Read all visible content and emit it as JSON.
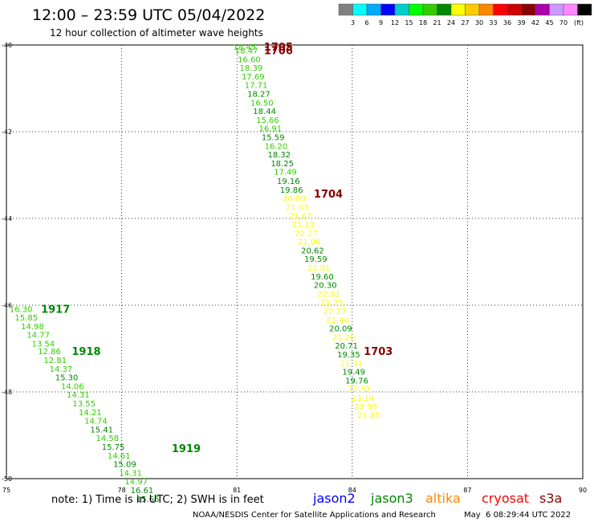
{
  "header": {
    "title": "12:00 – 23:59 UTC 05/04/2022",
    "subtitle": "12 hour collection of altimeter wave heights"
  },
  "colorbar": {
    "unit": "(ft)",
    "levels": [
      "",
      "3",
      "6",
      "9",
      "12",
      "15",
      "18",
      "21",
      "24",
      "27",
      "30",
      "33",
      "36",
      "39",
      "42",
      "45",
      "70"
    ],
    "colors": [
      "#808080",
      "#00ffff",
      "#00aaff",
      "#0000ff",
      "#00cccc",
      "#00ff00",
      "#33cc00",
      "#008800",
      "#ffff00",
      "#ffcc00",
      "#ff8800",
      "#ff0000",
      "#cc0000",
      "#880000",
      "#aa00aa",
      "#cc99ff",
      "#ff88ff",
      "#000000"
    ]
  },
  "footer": {
    "note": "note: 1) Time is in UTC; 2) SWH is in feet",
    "legend": [
      {
        "name": "jason2",
        "color": "#0000ff"
      },
      {
        "name": "jason3",
        "color": "#008800"
      },
      {
        "name": "altika",
        "color": "#ff8800"
      },
      {
        "name": "cryosat",
        "color": "#ff0000"
      },
      {
        "name": "s3a",
        "color": "#880000"
      }
    ],
    "credit": "NOAA/NESDIS Center for Satellite Applications and Research",
    "timestamp": "May  6 08:29:44 UTC 2022"
  },
  "chart_data": {
    "type": "scatter",
    "xlim": [
      75,
      90
    ],
    "ylim": [
      -50,
      -40
    ],
    "xticks": [
      "75",
      "78",
      "81",
      "84",
      "87",
      "90"
    ],
    "yticks": [
      "-40",
      "-42",
      "-44",
      "-46",
      "-48",
      "-50"
    ],
    "grid": true,
    "colors": {
      "dark": "#008800",
      "light": "#33cc00",
      "yellow": "#ffff00",
      "maroon": "#880000"
    },
    "passes": [
      {
        "label": "1705",
        "x": 81.7,
        "y": -40.04
      },
      {
        "label": "1706",
        "x": 81.7,
        "y": -40.12
      },
      {
        "label": "1704",
        "x": 83.0,
        "y": -43.43
      },
      {
        "label": "1703",
        "x": 84.3,
        "y": -47.06
      },
      {
        "label": "1917",
        "x": 75.9,
        "y": -46.08
      },
      {
        "label": "1918",
        "x": 76.7,
        "y": -47.06
      },
      {
        "label": "1919",
        "x": 79.3,
        "y": -49.3
      }
    ],
    "points": [
      {
        "x": 80.9,
        "y": -40.04,
        "v": "18.45",
        "c": "light"
      },
      {
        "x": 80.95,
        "y": -40.12,
        "v": "18.47",
        "c": "light"
      },
      {
        "x": 81.02,
        "y": -40.32,
        "v": "16.60",
        "c": "light"
      },
      {
        "x": 81.07,
        "y": -40.52,
        "v": "18.39",
        "c": "light"
      },
      {
        "x": 81.12,
        "y": -40.72,
        "v": "17.69",
        "c": "light"
      },
      {
        "x": 81.2,
        "y": -40.92,
        "v": "17.71",
        "c": "light"
      },
      {
        "x": 81.27,
        "y": -41.12,
        "v": "18.27",
        "c": "dark"
      },
      {
        "x": 81.35,
        "y": -41.32,
        "v": "16.50",
        "c": "light"
      },
      {
        "x": 81.42,
        "y": -41.52,
        "v": "18.44",
        "c": "dark"
      },
      {
        "x": 81.5,
        "y": -41.72,
        "v": "15.66",
        "c": "light"
      },
      {
        "x": 81.57,
        "y": -41.92,
        "v": "16.91",
        "c": "light"
      },
      {
        "x": 81.64,
        "y": -42.12,
        "v": "15.59",
        "c": "dark"
      },
      {
        "x": 81.72,
        "y": -42.32,
        "v": "16.20",
        "c": "light"
      },
      {
        "x": 81.8,
        "y": -42.52,
        "v": "18.32",
        "c": "dark"
      },
      {
        "x": 81.88,
        "y": -42.72,
        "v": "18.25",
        "c": "dark"
      },
      {
        "x": 81.96,
        "y": -42.92,
        "v": "17.49",
        "c": "light"
      },
      {
        "x": 82.04,
        "y": -43.13,
        "v": "19.16",
        "c": "dark"
      },
      {
        "x": 82.12,
        "y": -43.33,
        "v": "19.86",
        "c": "dark"
      },
      {
        "x": 82.19,
        "y": -43.53,
        "v": "20.80",
        "c": "yellow"
      },
      {
        "x": 82.27,
        "y": -43.73,
        "v": "21.03",
        "c": "yellow"
      },
      {
        "x": 82.35,
        "y": -43.93,
        "v": "21.67",
        "c": "yellow"
      },
      {
        "x": 82.43,
        "y": -44.13,
        "v": "21.13",
        "c": "yellow"
      },
      {
        "x": 82.5,
        "y": -44.33,
        "v": "22.27",
        "c": "yellow"
      },
      {
        "x": 82.58,
        "y": -44.53,
        "v": "21.98",
        "c": "yellow"
      },
      {
        "x": 82.67,
        "y": -44.73,
        "v": "20.62",
        "c": "dark"
      },
      {
        "x": 82.75,
        "y": -44.93,
        "v": "19.59",
        "c": "dark"
      },
      {
        "x": 82.83,
        "y": -45.13,
        "v": "21.01",
        "c": "yellow"
      },
      {
        "x": 82.92,
        "y": -45.33,
        "v": "19.60",
        "c": "dark"
      },
      {
        "x": 83.0,
        "y": -45.53,
        "v": "20.30",
        "c": "dark"
      },
      {
        "x": 83.09,
        "y": -45.73,
        "v": "22.91",
        "c": "yellow"
      },
      {
        "x": 83.17,
        "y": -45.93,
        "v": "21.75",
        "c": "yellow"
      },
      {
        "x": 83.25,
        "y": -46.13,
        "v": "22.17",
        "c": "yellow"
      },
      {
        "x": 83.32,
        "y": -46.33,
        "v": "21.40",
        "c": "yellow"
      },
      {
        "x": 83.4,
        "y": -46.53,
        "v": "20.09",
        "c": "dark"
      },
      {
        "x": 83.48,
        "y": -46.73,
        "v": "21.20",
        "c": "yellow"
      },
      {
        "x": 83.55,
        "y": -46.93,
        "v": "20.71",
        "c": "dark"
      },
      {
        "x": 83.61,
        "y": -47.13,
        "v": "19.35",
        "c": "dark"
      },
      {
        "x": 83.68,
        "y": -47.33,
        "v": "21.31",
        "c": "yellow"
      },
      {
        "x": 83.74,
        "y": -47.53,
        "v": "19.49",
        "c": "dark"
      },
      {
        "x": 83.82,
        "y": -47.73,
        "v": "19.76",
        "c": "dark"
      },
      {
        "x": 83.89,
        "y": -47.93,
        "v": "21.51",
        "c": "yellow"
      },
      {
        "x": 83.97,
        "y": -48.13,
        "v": "23.24",
        "c": "yellow"
      },
      {
        "x": 84.05,
        "y": -48.33,
        "v": "22.39",
        "c": "yellow"
      },
      {
        "x": 84.13,
        "y": -48.53,
        "v": "21.85",
        "c": "yellow"
      },
      {
        "x": 75.08,
        "y": -46.08,
        "v": "16.30",
        "c": "light"
      },
      {
        "x": 75.22,
        "y": -46.28,
        "v": "15.85",
        "c": "light"
      },
      {
        "x": 75.38,
        "y": -46.48,
        "v": "14.98",
        "c": "light"
      },
      {
        "x": 75.53,
        "y": -46.68,
        "v": "14.77",
        "c": "light"
      },
      {
        "x": 75.66,
        "y": -46.88,
        "v": "13.54",
        "c": "light"
      },
      {
        "x": 75.82,
        "y": -47.06,
        "v": "12.86",
        "c": "light"
      },
      {
        "x": 75.97,
        "y": -47.26,
        "v": "12.81",
        "c": "light"
      },
      {
        "x": 76.12,
        "y": -47.46,
        "v": "14.37",
        "c": "light"
      },
      {
        "x": 76.27,
        "y": -47.66,
        "v": "15.30",
        "c": "dark"
      },
      {
        "x": 76.42,
        "y": -47.86,
        "v": "14.06",
        "c": "light"
      },
      {
        "x": 76.57,
        "y": -48.06,
        "v": "14.31",
        "c": "light"
      },
      {
        "x": 76.72,
        "y": -48.26,
        "v": "13.55",
        "c": "light"
      },
      {
        "x": 76.88,
        "y": -48.46,
        "v": "14.21",
        "c": "light"
      },
      {
        "x": 77.03,
        "y": -48.66,
        "v": "14.74",
        "c": "light"
      },
      {
        "x": 77.18,
        "y": -48.86,
        "v": "15.41",
        "c": "dark"
      },
      {
        "x": 77.33,
        "y": -49.06,
        "v": "14.58",
        "c": "light"
      },
      {
        "x": 77.48,
        "y": -49.26,
        "v": "15.75",
        "c": "dark"
      },
      {
        "x": 77.63,
        "y": -49.46,
        "v": "14.61",
        "c": "light"
      },
      {
        "x": 77.78,
        "y": -49.66,
        "v": "15.09",
        "c": "dark"
      },
      {
        "x": 77.93,
        "y": -49.86,
        "v": "14.31",
        "c": "light"
      },
      {
        "x": 78.08,
        "y": -50.06,
        "v": "14.97",
        "c": "light"
      },
      {
        "x": 78.23,
        "y": -50.26,
        "v": "16.61",
        "c": "dark"
      },
      {
        "x": 78.38,
        "y": -50.46,
        "v": "15.66",
        "c": "dark"
      }
    ]
  }
}
